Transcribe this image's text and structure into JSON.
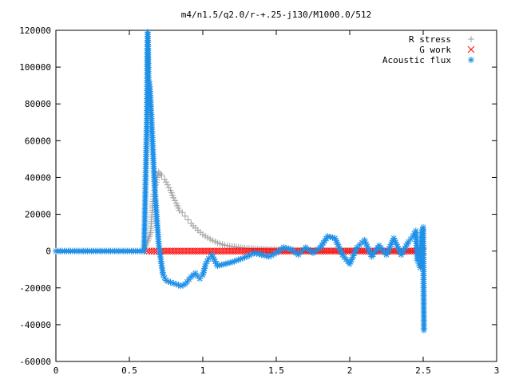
{
  "chart_data": {
    "type": "scatter",
    "title": "m4/n1.5/q2.0/r-+.25-j130/M1000.0/512",
    "xlabel": "",
    "ylabel": "",
    "xlim": [
      0,
      3
    ],
    "ylim": [
      -60000,
      120000
    ],
    "xticks": [
      "0",
      "0.5",
      "1",
      "1.5",
      "2",
      "2.5",
      "3"
    ],
    "yticks": [
      "-60000",
      "-40000",
      "-20000",
      "0",
      "20000",
      "40000",
      "60000",
      "80000",
      "100000",
      "120000"
    ],
    "grid": false,
    "legend_position": "top-right",
    "series": [
      {
        "name": "R stress",
        "marker": "plus",
        "color": "#a0a0a0",
        "points": [
          [
            0.0,
            0
          ],
          [
            0.1,
            0
          ],
          [
            0.2,
            0
          ],
          [
            0.3,
            0
          ],
          [
            0.4,
            0
          ],
          [
            0.5,
            0
          ],
          [
            0.6,
            0
          ],
          [
            0.645,
            10000
          ],
          [
            0.65,
            16000
          ],
          [
            0.655,
            21000
          ],
          [
            0.66,
            27000
          ],
          [
            0.665,
            31000
          ],
          [
            0.67,
            33000
          ],
          [
            0.68,
            36000
          ],
          [
            0.69,
            40000
          ],
          [
            0.7,
            43000
          ],
          [
            0.71,
            42000
          ],
          [
            0.72,
            41000
          ],
          [
            0.74,
            39000
          ],
          [
            0.76,
            36000
          ],
          [
            0.78,
            33000
          ],
          [
            0.8,
            29000
          ],
          [
            0.82,
            26000
          ],
          [
            0.84,
            22000
          ],
          [
            0.86,
            21000
          ],
          [
            0.88,
            19000
          ],
          [
            0.9,
            17000
          ],
          [
            0.92,
            15000
          ],
          [
            0.95,
            12500
          ],
          [
            1.0,
            9000
          ],
          [
            1.05,
            6500
          ],
          [
            1.1,
            4500
          ],
          [
            1.15,
            3200
          ],
          [
            1.2,
            2500
          ],
          [
            1.3,
            1500
          ],
          [
            1.4,
            1000
          ],
          [
            1.5,
            800
          ],
          [
            1.6,
            500
          ],
          [
            1.8,
            300
          ],
          [
            2.0,
            200
          ],
          [
            2.2,
            100
          ],
          [
            2.4,
            100
          ],
          [
            2.5,
            0
          ]
        ]
      },
      {
        "name": "G work",
        "marker": "cross",
        "color": "#ff0000",
        "points": [
          [
            0.62,
            0
          ],
          [
            0.7,
            0
          ],
          [
            0.8,
            0
          ],
          [
            0.9,
            0
          ],
          [
            1.0,
            0
          ],
          [
            1.1,
            0
          ],
          [
            1.2,
            0
          ],
          [
            1.3,
            0
          ],
          [
            1.4,
            0
          ],
          [
            1.5,
            0
          ],
          [
            1.6,
            0
          ],
          [
            1.7,
            0
          ],
          [
            1.8,
            0
          ],
          [
            1.9,
            0
          ],
          [
            2.0,
            0
          ],
          [
            2.1,
            0
          ],
          [
            2.2,
            0
          ],
          [
            2.3,
            0
          ],
          [
            2.4,
            0
          ],
          [
            2.5,
            0
          ]
        ]
      },
      {
        "name": "Acoustic flux",
        "marker": "star",
        "color": "#1e90e8",
        "points": [
          [
            0.0,
            0
          ],
          [
            0.1,
            0
          ],
          [
            0.2,
            0
          ],
          [
            0.3,
            0
          ],
          [
            0.4,
            0
          ],
          [
            0.5,
            0
          ],
          [
            0.6,
            0
          ],
          [
            0.625,
            119000
          ],
          [
            0.63,
            93000
          ],
          [
            0.635,
            92000
          ],
          [
            0.64,
            88000
          ],
          [
            0.645,
            81000
          ],
          [
            0.62,
            72000
          ],
          [
            0.65,
            72000
          ],
          [
            0.655,
            64000
          ],
          [
            0.66,
            55000
          ],
          [
            0.665,
            47000
          ],
          [
            0.67,
            39000
          ],
          [
            0.675,
            32000
          ],
          [
            0.68,
            26000
          ],
          [
            0.685,
            20000
          ],
          [
            0.69,
            14000
          ],
          [
            0.695,
            9000
          ],
          [
            0.7,
            4000
          ],
          [
            0.71,
            -2000
          ],
          [
            0.72,
            -8000
          ],
          [
            0.73,
            -13000
          ],
          [
            0.75,
            -16000
          ],
          [
            0.78,
            -17000
          ],
          [
            0.82,
            -18000
          ],
          [
            0.85,
            -19000
          ],
          [
            0.88,
            -18000
          ],
          [
            0.92,
            -14000
          ],
          [
            0.95,
            -12000
          ],
          [
            0.98,
            -15000
          ],
          [
            1.0,
            -13000
          ],
          [
            1.02,
            -7000
          ],
          [
            1.04,
            -4000
          ],
          [
            1.06,
            -2000
          ],
          [
            1.1,
            -8000
          ],
          [
            1.2,
            -6000
          ],
          [
            1.3,
            -3000
          ],
          [
            1.35,
            -1000
          ],
          [
            1.4,
            -2000
          ],
          [
            1.45,
            -3000
          ],
          [
            1.5,
            -1000
          ],
          [
            1.55,
            2000
          ],
          [
            1.6,
            1000
          ],
          [
            1.65,
            -2000
          ],
          [
            1.7,
            2000
          ],
          [
            1.75,
            -1000
          ],
          [
            1.8,
            2000
          ],
          [
            1.85,
            8000
          ],
          [
            1.9,
            7000
          ],
          [
            1.95,
            -2000
          ],
          [
            2.0,
            -7000
          ],
          [
            2.05,
            2000
          ],
          [
            2.1,
            6000
          ],
          [
            2.15,
            -3000
          ],
          [
            2.2,
            3000
          ],
          [
            2.25,
            -2000
          ],
          [
            2.3,
            7000
          ],
          [
            2.35,
            -2000
          ],
          [
            2.4,
            5000
          ],
          [
            2.43,
            8000
          ],
          [
            2.45,
            11000
          ],
          [
            2.46,
            -5000
          ],
          [
            2.47,
            -7000
          ],
          [
            2.48,
            -9000
          ],
          [
            2.49,
            10000
          ],
          [
            2.5,
            13000
          ],
          [
            2.505,
            -43000
          ]
        ]
      }
    ]
  }
}
